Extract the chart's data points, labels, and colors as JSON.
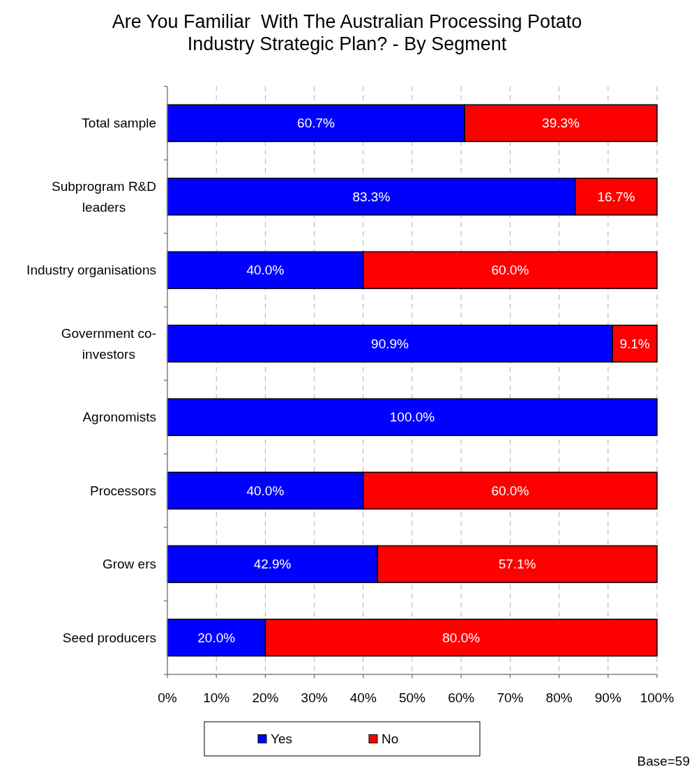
{
  "chart_data": {
    "type": "bar",
    "orientation": "horizontal",
    "stacked": true,
    "title": "Are You Familiar  With The Australian Processing Potato\nIndustry Strategic Plan? - By Segment",
    "categories": [
      "Total sample",
      "Subprogram R&D\nleaders",
      "Industry organisations",
      "Government co-\ninvestors",
      "Agronomists",
      "Processors",
      "Grow ers",
      "Seed producers"
    ],
    "series": [
      {
        "name": "Yes",
        "color": "#0000ff",
        "values": [
          60.7,
          83.3,
          40.0,
          90.9,
          100.0,
          40.0,
          42.9,
          20.0
        ],
        "value_labels": [
          "60.7%",
          "83.3%",
          "40.0%",
          "90.9%",
          "100.0%",
          "40.0%",
          "42.9%",
          "20.0%"
        ]
      },
      {
        "name": "No",
        "color": "#ff0000",
        "values": [
          39.3,
          16.7,
          60.0,
          9.1,
          0,
          60.0,
          57.1,
          80.0
        ],
        "value_labels": [
          "39.3%",
          "16.7%",
          "60.0%",
          "9.1%",
          null,
          "60.0%",
          "57.1%",
          "80.0%"
        ]
      }
    ],
    "xlim": [
      0,
      100
    ],
    "xticks": [
      {
        "value": 0,
        "label": "0%"
      },
      {
        "value": 10,
        "label": "10%"
      },
      {
        "value": 20,
        "label": "20%"
      },
      {
        "value": 30,
        "label": "30%"
      },
      {
        "value": 40,
        "label": "40%"
      },
      {
        "value": 50,
        "label": "50%"
      },
      {
        "value": 60,
        "label": "60%"
      },
      {
        "value": 70,
        "label": "70%"
      },
      {
        "value": 80,
        "label": "80%"
      },
      {
        "value": 90,
        "label": "90%"
      },
      {
        "value": 100,
        "label": "100%"
      }
    ],
    "grid": "x",
    "legend": "bottom",
    "annotations": [
      "Base=59"
    ]
  }
}
